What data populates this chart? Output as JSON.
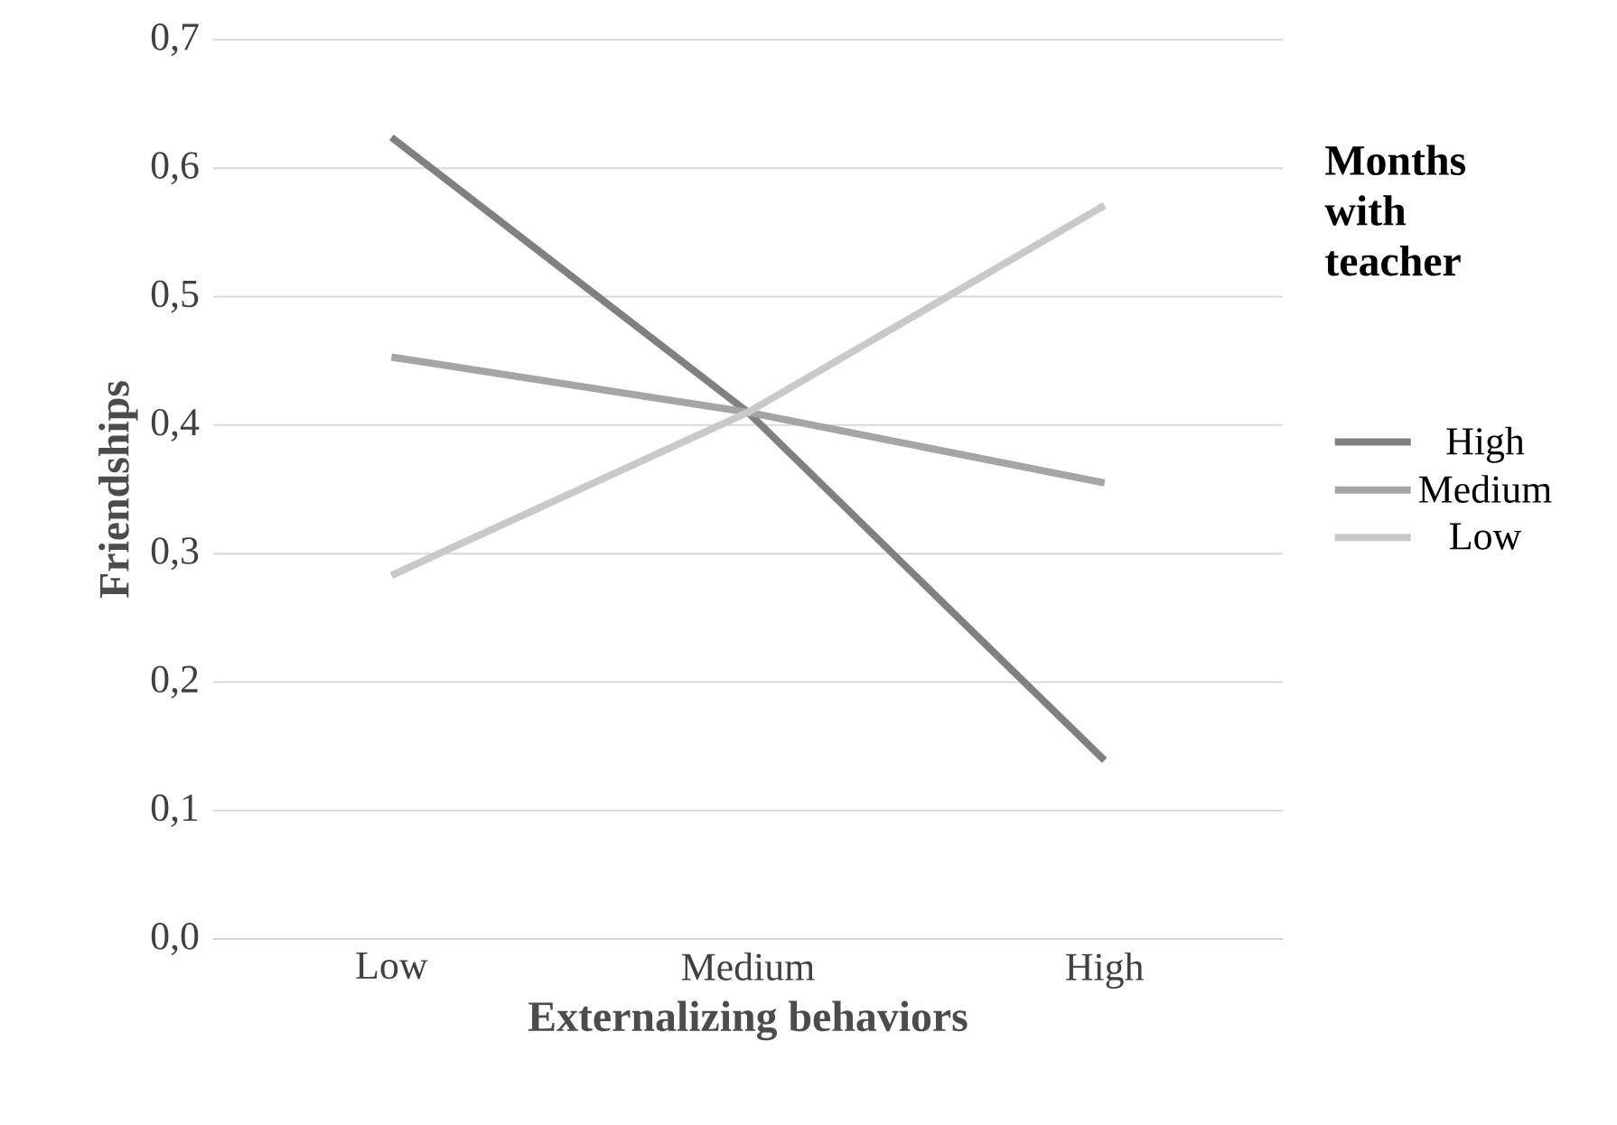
{
  "chart_data": {
    "type": "line",
    "xlabel": "Externalizing behaviors",
    "ylabel": "Friendships",
    "legend_title": "Months with teacher",
    "categories": [
      "Low",
      "Medium",
      "High"
    ],
    "series": [
      {
        "name": "High",
        "color": "#808080",
        "values": [
          0.624,
          0.41,
          0.139
        ]
      },
      {
        "name": "Medium",
        "color": "#a5a5a5",
        "values": [
          0.453,
          0.41,
          0.355
        ]
      },
      {
        "name": "Low",
        "color": "#c9c9c9",
        "values": [
          0.283,
          0.41,
          0.571
        ]
      }
    ],
    "ylim": [
      0,
      0.7
    ],
    "yticks": [
      {
        "value": 0,
        "label": "0,0"
      },
      {
        "value": 0.1,
        "label": "0,1"
      },
      {
        "value": 0.2,
        "label": "0,2"
      },
      {
        "value": 0.3,
        "label": "0,3"
      },
      {
        "value": 0.4,
        "label": "0,4"
      },
      {
        "value": 0.5,
        "label": "0,5"
      },
      {
        "value": 0.6,
        "label": "0,6"
      },
      {
        "value": 0.7,
        "label": "0,7"
      }
    ],
    "grid": "y",
    "legend": "right",
    "marker": "none",
    "line_style": "solid"
  }
}
